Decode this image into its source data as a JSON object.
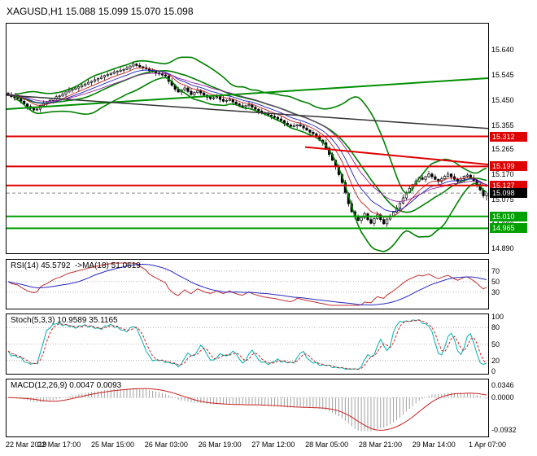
{
  "title": {
    "text": "XAGUSD,H1 15.088 15.099 15.070 15.098"
  },
  "chart_data": {
    "type": "candlestick",
    "symbol": "XAGUSD",
    "timeframe": "H1",
    "ohlc_display": {
      "open": "15.088",
      "high": "15.099",
      "low": "15.070",
      "close": "15.098"
    },
    "x_labels": [
      "22 Mar 2019",
      "22 Mar 17:00",
      "25 Mar 15:00",
      "26 Mar 03:00",
      "26 Mar 19:00",
      "27 Mar 12:00",
      "28 Mar 05:00",
      "28 Mar 21:00",
      "29 Mar 14:00",
      "1 Apr 07:00"
    ],
    "price_axis_labels": [
      "15.640",
      "15.545",
      "15.450",
      "15.355",
      "15.265",
      "15.170",
      "15.075",
      "14.980",
      "14.890"
    ],
    "price_range": {
      "min": 14.871,
      "max": 15.738
    },
    "grid": false,
    "candles": {
      "first_open": 15.475,
      "closes": [
        15.47,
        15.462,
        15.458,
        15.455,
        15.445,
        15.435,
        15.425,
        15.418,
        15.412,
        15.415,
        15.428,
        15.436,
        15.44,
        15.448,
        15.455,
        15.462,
        15.465,
        15.472,
        15.48,
        15.486,
        15.49,
        15.495,
        15.5,
        15.505,
        15.51,
        15.516,
        15.52,
        15.526,
        15.53,
        15.536,
        15.542,
        15.546,
        15.55,
        15.555,
        15.558,
        15.562,
        15.565,
        15.57,
        15.578,
        15.585,
        15.58,
        15.575,
        15.572,
        15.568,
        15.56,
        15.556,
        15.552,
        15.548,
        15.544,
        15.54,
        15.52,
        15.505,
        15.49,
        15.48,
        15.488,
        15.495,
        15.482,
        15.47,
        15.478,
        15.485,
        15.476,
        15.468,
        15.46,
        15.455,
        15.458,
        15.462,
        15.452,
        15.445,
        15.448,
        15.452,
        15.442,
        15.435,
        15.428,
        15.424,
        15.428,
        15.432,
        15.422,
        15.415,
        15.408,
        15.402,
        15.396,
        15.392,
        15.388,
        15.384,
        15.378,
        15.372,
        15.362,
        15.356,
        15.35,
        15.352,
        15.356,
        15.352,
        15.344,
        15.336,
        15.328,
        15.322,
        15.312,
        15.298,
        15.288,
        15.268,
        15.244,
        15.222,
        15.198,
        15.168,
        15.138,
        15.098,
        15.058,
        15.028,
        15.008,
        14.995,
        15.006,
        15.02,
        14.998,
        14.984,
        15.002,
        15.016,
        14.998,
        14.982,
        15.0,
        15.012,
        15.026,
        15.042,
        15.06,
        15.08,
        15.1,
        15.116,
        15.13,
        15.144,
        15.156,
        15.15,
        15.16,
        15.17,
        15.16,
        15.15,
        15.142,
        15.152,
        15.162,
        15.17,
        15.16,
        15.15,
        15.142,
        15.152,
        15.162,
        15.166,
        15.156,
        15.146,
        15.13,
        15.11,
        15.088,
        15.098
      ],
      "high_wicks": [
        0.005,
        0.01,
        0.004,
        0.012,
        0.006,
        0.009,
        0.003,
        0.008
      ],
      "low_wicks": [
        0.006,
        0.004,
        0.011,
        0.005,
        0.009,
        0.003,
        0.012,
        0.007
      ],
      "last_candle": {
        "open": 15.088,
        "high": 15.099,
        "low": 15.07,
        "close": 15.098
      }
    },
    "overlays": {
      "bollinger": {
        "period": 20,
        "deviation": 2,
        "color": "#008000"
      },
      "mas": [
        {
          "period": 8,
          "color": "#c02020"
        },
        {
          "period": 13,
          "color": "#2020c0"
        },
        {
          "period": 21,
          "color": "#9020a0"
        }
      ],
      "horizontal_lines": [
        {
          "price": 15.312,
          "label": "15.312",
          "color": "#e00000",
          "badge_color": "#e00000"
        },
        {
          "price": 15.199,
          "label": "15.199",
          "color": "#e00000",
          "badge_color": "#e00000"
        },
        {
          "price": 15.127,
          "label": "15.127",
          "color": "#e00000",
          "badge_color": "#e00000"
        },
        {
          "price": 15.01,
          "label": "15.010",
          "color": "#00a000",
          "badge_color": "#00a000"
        },
        {
          "price": 14.965,
          "label": "14.965",
          "color": "#00a000",
          "badge_color": "#00a000"
        }
      ],
      "trendlines": [
        {
          "x1": 0,
          "p1": 15.415,
          "x2": 1,
          "p2": 15.532,
          "color": "#009000",
          "width": 2
        },
        {
          "x1": 0.62,
          "p1": 15.272,
          "x2": 1,
          "p2": 15.206,
          "color": "#e00000",
          "width": 2
        },
        {
          "x1": 0,
          "p1": 15.468,
          "x2": 1,
          "p2": 15.342,
          "color": "#333333",
          "width": 1.5
        }
      ],
      "current_price": {
        "price": 15.098,
        "label": "15.098",
        "line_color": "#888888",
        "badge_color": "#000000"
      }
    },
    "panels": {
      "rsi": {
        "label": "RSI(14) 45.5792  ->MA(18) 51.0619",
        "period": 14,
        "ma_period": 18,
        "value": "45.5792",
        "ma_value": "51.0619",
        "levels": [
          70,
          50,
          30
        ],
        "scale": [
          5,
          85
        ],
        "line_color": "#c03030",
        "ma_color": "#2828c0"
      },
      "stoch": {
        "label": "Stoch(5,3,3) 10.9589 35.1165",
        "k_period": 5,
        "d_period": 3,
        "slowing": 3,
        "value_k": "10.9589",
        "value_d": "35.1165",
        "axis_labels": [
          100,
          80,
          50,
          20,
          0
        ],
        "dotted_levels": [
          80,
          50,
          20
        ],
        "k_color": "#00b0b0",
        "d_color": "#cc2222"
      },
      "macd": {
        "label": "MACD(12,26,9) 0.0047 0.0093",
        "fast": 12,
        "slow": 26,
        "signal": 9,
        "value_macd": "0.0047",
        "value_signal": "0.0093",
        "axis_labels": {
          "max": "0.0346",
          "zero": "0.0000",
          "min": "-0.0932"
        },
        "scale": [
          -0.105,
          0.045
        ],
        "hist_color": "#a0a0a0",
        "signal_color": "#cc2222"
      }
    }
  }
}
